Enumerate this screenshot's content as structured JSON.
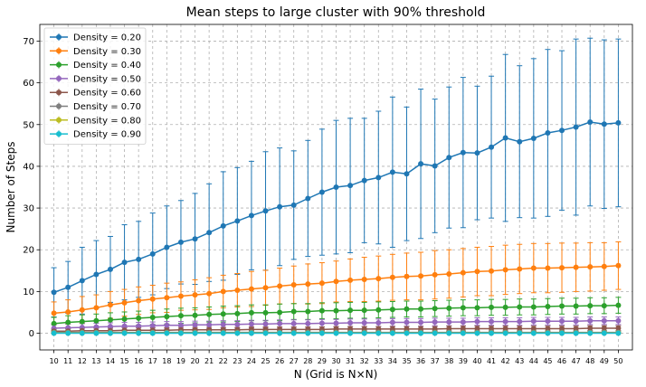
{
  "chart_data": {
    "type": "line",
    "title": "Mean steps to large cluster with 90% threshold",
    "xlabel": "N (Grid is N×N)",
    "ylabel": "Number of Steps",
    "x": [
      10,
      11,
      12,
      13,
      14,
      15,
      16,
      17,
      18,
      19,
      20,
      21,
      22,
      23,
      24,
      25,
      26,
      27,
      28,
      29,
      30,
      31,
      32,
      33,
      34,
      35,
      36,
      37,
      38,
      39,
      40,
      41,
      42,
      43,
      44,
      45,
      46,
      47,
      48,
      49,
      50
    ],
    "xlim": [
      9,
      51
    ],
    "ylim": [
      -4,
      74
    ],
    "yticks": [
      0,
      10,
      20,
      30,
      40,
      50,
      60,
      70
    ],
    "grid": true,
    "legend_position": "top-left",
    "series": [
      {
        "name": "Density = 0.20",
        "color": "#1f77b4",
        "marker": "circle",
        "values": [
          9.8,
          11.0,
          12.6,
          14.1,
          15.3,
          17.0,
          17.7,
          19.0,
          20.6,
          21.8,
          22.6,
          24.1,
          25.7,
          26.9,
          28.2,
          29.3,
          30.3,
          30.7,
          32.3,
          33.8,
          35.0,
          35.4,
          36.6,
          37.3,
          38.6,
          38.2,
          40.6,
          40.1,
          42.1,
          43.3,
          43.2,
          44.6,
          46.8,
          45.9,
          46.7,
          48.0,
          48.6,
          49.4,
          50.6,
          50.1,
          50.4
        ],
        "err_upper": [
          15.7,
          17.2,
          20.6,
          22.2,
          23.2,
          26.0,
          26.8,
          28.8,
          30.5,
          31.8,
          33.5,
          35.8,
          38.7,
          39.7,
          41.2,
          43.5,
          44.4,
          43.7,
          46.2,
          48.9,
          51.0,
          51.5,
          51.5,
          53.2,
          56.6,
          54.2,
          58.5,
          56.1,
          59.0,
          61.3,
          59.2,
          61.6,
          66.8,
          64.1,
          65.8,
          68.0,
          67.7,
          70.5,
          70.7,
          70.3,
          70.5
        ],
        "err_lower": [
          3.9,
          4.8,
          4.6,
          6.0,
          7.4,
          8.0,
          8.6,
          9.2,
          10.7,
          11.8,
          11.7,
          12.4,
          12.7,
          14.1,
          15.2,
          15.1,
          16.2,
          17.7,
          18.4,
          18.7,
          19.0,
          19.3,
          21.7,
          21.4,
          20.6,
          22.2,
          22.7,
          24.1,
          25.2,
          25.3,
          27.2,
          27.6,
          26.8,
          27.7,
          27.6,
          28.0,
          29.5,
          28.3,
          30.5,
          29.9,
          30.3
        ]
      },
      {
        "name": "Density = 0.30",
        "color": "#ff7f0e",
        "marker": "circle",
        "values": [
          4.8,
          5.1,
          5.6,
          6.1,
          6.8,
          7.3,
          7.8,
          8.2,
          8.5,
          8.9,
          9.2,
          9.5,
          10.0,
          10.3,
          10.6,
          10.9,
          11.3,
          11.6,
          11.8,
          12.0,
          12.4,
          12.7,
          12.9,
          13.1,
          13.4,
          13.6,
          13.7,
          14.0,
          14.2,
          14.5,
          14.8,
          14.9,
          15.2,
          15.4,
          15.6,
          15.6,
          15.7,
          15.8,
          15.9,
          16.0,
          16.2
        ],
        "err_upper": [
          7.5,
          8.0,
          8.8,
          9.2,
          10.0,
          10.5,
          11.1,
          11.5,
          12.0,
          12.3,
          12.8,
          13.3,
          13.9,
          14.3,
          14.8,
          15.1,
          15.6,
          16.1,
          16.6,
          16.9,
          17.3,
          17.8,
          18.2,
          18.5,
          18.9,
          19.2,
          19.4,
          19.8,
          20.0,
          20.3,
          20.6,
          20.8,
          21.1,
          21.3,
          21.5,
          21.5,
          21.6,
          21.6,
          21.7,
          21.7,
          21.9
        ],
        "err_lower": [
          2.1,
          2.2,
          2.4,
          3.0,
          3.6,
          4.1,
          4.5,
          4.9,
          5.0,
          5.5,
          5.6,
          5.7,
          6.1,
          6.3,
          6.4,
          6.7,
          7.0,
          7.1,
          7.0,
          7.1,
          7.5,
          7.6,
          7.6,
          7.7,
          7.9,
          8.0,
          8.0,
          8.2,
          8.4,
          8.7,
          9.0,
          9.0,
          9.3,
          9.5,
          9.7,
          9.7,
          9.8,
          10.0,
          10.1,
          10.3,
          10.5
        ]
      },
      {
        "name": "Density = 0.40",
        "color": "#2ca02c",
        "marker": "circle",
        "values": [
          2.3,
          2.6,
          2.8,
          3.0,
          3.2,
          3.4,
          3.6,
          3.8,
          4.0,
          4.2,
          4.3,
          4.5,
          4.6,
          4.7,
          4.9,
          4.9,
          5.0,
          5.2,
          5.2,
          5.4,
          5.4,
          5.5,
          5.5,
          5.6,
          5.7,
          5.8,
          5.8,
          5.9,
          6.0,
          6.1,
          6.1,
          6.2,
          6.2,
          6.3,
          6.3,
          6.4,
          6.5,
          6.5,
          6.6,
          6.6,
          6.7
        ],
        "err_upper": [
          3.8,
          4.2,
          4.4,
          4.6,
          4.9,
          5.1,
          5.3,
          5.5,
          5.8,
          6.0,
          6.1,
          6.3,
          6.5,
          6.6,
          6.8,
          6.8,
          7.0,
          7.1,
          7.1,
          7.3,
          7.3,
          7.4,
          7.4,
          7.5,
          7.6,
          7.7,
          7.7,
          7.8,
          7.9,
          8.0,
          8.0,
          8.1,
          8.1,
          8.2,
          8.2,
          8.3,
          8.4,
          8.4,
          8.5,
          8.5,
          8.6
        ],
        "err_lower": [
          0.8,
          1.0,
          1.2,
          1.4,
          1.5,
          1.7,
          1.9,
          2.1,
          2.2,
          2.4,
          2.5,
          2.7,
          2.7,
          2.8,
          3.0,
          3.0,
          3.0,
          3.3,
          3.3,
          3.5,
          3.5,
          3.6,
          3.6,
          3.7,
          3.8,
          3.9,
          3.9,
          4.0,
          4.1,
          4.2,
          4.2,
          4.3,
          4.3,
          4.4,
          4.4,
          4.5,
          4.6,
          4.6,
          4.7,
          4.7,
          4.8
        ]
      },
      {
        "name": "Density = 0.50",
        "color": "#9467bd",
        "marker": "circle",
        "values": [
          1.2,
          1.3,
          1.4,
          1.5,
          1.6,
          1.7,
          1.7,
          1.8,
          1.9,
          1.9,
          2.0,
          2.0,
          2.1,
          2.1,
          2.2,
          2.2,
          2.3,
          2.3,
          2.3,
          2.4,
          2.4,
          2.5,
          2.5,
          2.5,
          2.6,
          2.6,
          2.6,
          2.7,
          2.7,
          2.7,
          2.8,
          2.8,
          2.8,
          2.8,
          2.9,
          2.9,
          2.9,
          2.9,
          3.0,
          3.0,
          3.0
        ],
        "err_upper": [
          2.0,
          2.2,
          2.3,
          2.4,
          2.5,
          2.6,
          2.6,
          2.7,
          2.8,
          2.8,
          2.9,
          2.9,
          3.0,
          3.0,
          3.1,
          3.1,
          3.2,
          3.2,
          3.2,
          3.3,
          3.3,
          3.4,
          3.4,
          3.4,
          3.5,
          3.5,
          3.5,
          3.6,
          3.6,
          3.6,
          3.7,
          3.7,
          3.7,
          3.7,
          3.8,
          3.8,
          3.8,
          3.8,
          3.9,
          3.9,
          3.9
        ],
        "err_lower": [
          0.4,
          0.4,
          0.5,
          0.6,
          0.7,
          0.8,
          0.8,
          0.9,
          1.0,
          1.0,
          1.1,
          1.1,
          1.2,
          1.2,
          1.3,
          1.3,
          1.4,
          1.4,
          1.4,
          1.5,
          1.5,
          1.6,
          1.6,
          1.6,
          1.7,
          1.7,
          1.7,
          1.8,
          1.8,
          1.8,
          1.9,
          1.9,
          1.9,
          1.9,
          2.0,
          2.0,
          2.0,
          2.0,
          2.1,
          2.1,
          2.1
        ]
      },
      {
        "name": "Density = 0.60",
        "color": "#8c564b",
        "marker": "circle",
        "values": [
          0.5,
          0.5,
          0.6,
          0.6,
          0.6,
          0.7,
          0.7,
          0.7,
          0.7,
          0.8,
          0.8,
          0.8,
          0.8,
          0.8,
          0.9,
          0.9,
          0.9,
          0.9,
          0.9,
          0.9,
          1.0,
          1.0,
          1.0,
          1.0,
          1.0,
          1.0,
          1.0,
          1.0,
          1.1,
          1.1,
          1.1,
          1.1,
          1.1,
          1.1,
          1.1,
          1.1,
          1.1,
          1.1,
          1.2,
          1.2,
          1.2
        ],
        "err_upper": [
          1.1,
          1.1,
          1.2,
          1.2,
          1.2,
          1.3,
          1.3,
          1.3,
          1.3,
          1.4,
          1.4,
          1.4,
          1.4,
          1.4,
          1.5,
          1.5,
          1.5,
          1.5,
          1.5,
          1.5,
          1.6,
          1.6,
          1.6,
          1.6,
          1.6,
          1.6,
          1.6,
          1.6,
          1.7,
          1.7,
          1.7,
          1.7,
          1.7,
          1.7,
          1.7,
          1.7,
          1.7,
          1.7,
          1.8,
          1.8,
          1.8
        ],
        "err_lower": [
          0.0,
          0.0,
          0.0,
          0.0,
          0.0,
          0.1,
          0.1,
          0.1,
          0.1,
          0.2,
          0.2,
          0.2,
          0.2,
          0.2,
          0.3,
          0.3,
          0.3,
          0.3,
          0.3,
          0.3,
          0.4,
          0.4,
          0.4,
          0.4,
          0.4,
          0.4,
          0.4,
          0.4,
          0.5,
          0.5,
          0.5,
          0.5,
          0.5,
          0.5,
          0.5,
          0.5,
          0.5,
          0.5,
          0.6,
          0.6,
          0.6
        ]
      },
      {
        "name": "Density = 0.70",
        "color": "#7f7f7f",
        "marker": "circle",
        "values": [
          0.2,
          0.2,
          0.2,
          0.2,
          0.2,
          0.2,
          0.2,
          0.2,
          0.2,
          0.2,
          0.2,
          0.2,
          0.2,
          0.2,
          0.2,
          0.2,
          0.2,
          0.2,
          0.2,
          0.2,
          0.2,
          0.2,
          0.2,
          0.2,
          0.2,
          0.2,
          0.2,
          0.2,
          0.2,
          0.2,
          0.2,
          0.2,
          0.2,
          0.2,
          0.2,
          0.2,
          0.2,
          0.2,
          0.2,
          0.2,
          0.2
        ],
        "err_upper": [
          0.6,
          0.6,
          0.6,
          0.6,
          0.6,
          0.6,
          0.6,
          0.6,
          0.6,
          0.6,
          0.6,
          0.6,
          0.6,
          0.6,
          0.6,
          0.6,
          0.6,
          0.6,
          0.6,
          0.6,
          0.6,
          0.6,
          0.6,
          0.6,
          0.6,
          0.6,
          0.6,
          0.6,
          0.6,
          0.6,
          0.6,
          0.6,
          0.6,
          0.6,
          0.6,
          0.6,
          0.6,
          0.6,
          0.6,
          0.6,
          0.6
        ],
        "err_lower": [
          0.0,
          0.0,
          0.0,
          0.0,
          0.0,
          0.0,
          0.0,
          0.0,
          0.0,
          0.0,
          0.0,
          0.0,
          0.0,
          0.0,
          0.0,
          0.0,
          0.0,
          0.0,
          0.0,
          0.0,
          0.0,
          0.0,
          0.0,
          0.0,
          0.0,
          0.0,
          0.0,
          0.0,
          0.0,
          0.0,
          0.0,
          0.0,
          0.0,
          0.0,
          0.0,
          0.0,
          0.0,
          0.0,
          0.0,
          0.0,
          0.0
        ]
      },
      {
        "name": "Density = 0.80",
        "color": "#bcbd22",
        "marker": "circle",
        "values": [
          0.05,
          0.05,
          0.05,
          0.05,
          0.05,
          0.05,
          0.05,
          0.05,
          0.05,
          0.05,
          0.05,
          0.05,
          0.05,
          0.05,
          0.05,
          0.05,
          0.05,
          0.05,
          0.05,
          0.05,
          0.05,
          0.05,
          0.05,
          0.05,
          0.05,
          0.05,
          0.05,
          0.05,
          0.05,
          0.05,
          0.05,
          0.05,
          0.05,
          0.05,
          0.05,
          0.05,
          0.05,
          0.05,
          0.05,
          0.05,
          0.05
        ],
        "err_upper": [
          0.3,
          0.3,
          0.3,
          0.3,
          0.3,
          0.3,
          0.3,
          0.3,
          0.3,
          0.3,
          0.3,
          0.3,
          0.3,
          0.3,
          0.3,
          0.3,
          0.3,
          0.3,
          0.3,
          0.3,
          0.3,
          0.3,
          0.3,
          0.3,
          0.3,
          0.3,
          0.3,
          0.3,
          0.3,
          0.3,
          0.3,
          0.3,
          0.3,
          0.3,
          0.3,
          0.3,
          0.3,
          0.3,
          0.3,
          0.3,
          0.3
        ],
        "err_lower": [
          0.0,
          0.0,
          0.0,
          0.0,
          0.0,
          0.0,
          0.0,
          0.0,
          0.0,
          0.0,
          0.0,
          0.0,
          0.0,
          0.0,
          0.0,
          0.0,
          0.0,
          0.0,
          0.0,
          0.0,
          0.0,
          0.0,
          0.0,
          0.0,
          0.0,
          0.0,
          0.0,
          0.0,
          0.0,
          0.0,
          0.0,
          0.0,
          0.0,
          0.0,
          0.0,
          0.0,
          0.0,
          0.0,
          0.0,
          0.0,
          0.0
        ]
      },
      {
        "name": "Density = 0.90",
        "color": "#17becf",
        "marker": "circle",
        "values": [
          0,
          0,
          0,
          0,
          0,
          0,
          0,
          0,
          0,
          0,
          0,
          0,
          0,
          0,
          0,
          0,
          0,
          0,
          0,
          0,
          0,
          0,
          0,
          0,
          0,
          0,
          0,
          0,
          0,
          0,
          0,
          0,
          0,
          0,
          0,
          0,
          0,
          0,
          0,
          0,
          0
        ],
        "err_upper": [
          0.1,
          0.1,
          0.1,
          0.1,
          0.1,
          0.1,
          0.1,
          0.1,
          0.1,
          0.1,
          0.1,
          0.1,
          0.1,
          0.1,
          0.1,
          0.1,
          0.1,
          0.1,
          0.1,
          0.1,
          0.1,
          0.1,
          0.1,
          0.1,
          0.1,
          0.1,
          0.1,
          0.1,
          0.1,
          0.1,
          0.1,
          0.1,
          0.1,
          0.1,
          0.1,
          0.1,
          0.1,
          0.1,
          0.1,
          0.1,
          0.1
        ],
        "err_lower": [
          0,
          0,
          0,
          0,
          0,
          0,
          0,
          0,
          0,
          0,
          0,
          0,
          0,
          0,
          0,
          0,
          0,
          0,
          0,
          0,
          0,
          0,
          0,
          0,
          0,
          0,
          0,
          0,
          0,
          0,
          0,
          0,
          0,
          0,
          0,
          0,
          0,
          0,
          0,
          0,
          0
        ]
      }
    ]
  }
}
